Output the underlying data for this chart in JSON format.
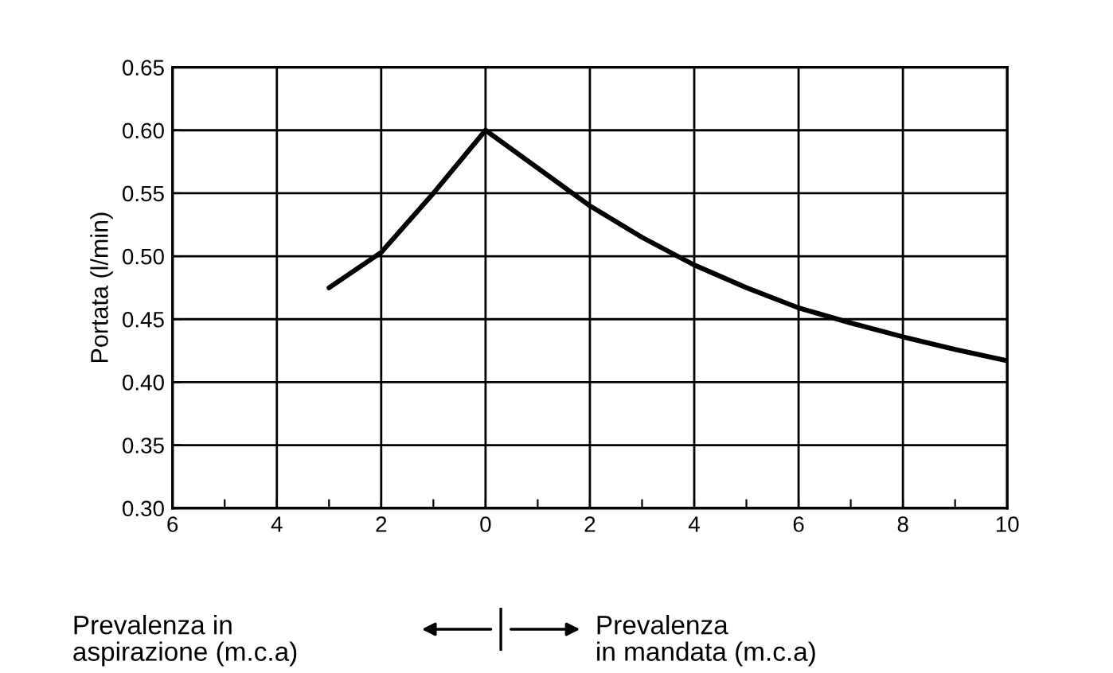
{
  "chart_data": {
    "type": "line",
    "ylabel": "Portata (l/min)",
    "annotations": [
      "Prevalenza in\naspirazione (m.c.a)",
      "Prevalenza\nin mandata (m.c.a)"
    ],
    "x": [
      -3,
      -2,
      -1,
      0,
      1,
      2,
      3,
      4,
      5,
      6,
      7,
      8,
      9,
      10
    ],
    "series": [
      {
        "color": "#000000",
        "values": [
          0.475,
          0.503,
          0.55,
          0.6,
          0.57,
          0.54,
          0.515,
          0.493,
          0.475,
          0.459,
          0.447,
          0.436,
          0.426,
          0.417
        ]
      }
    ],
    "xlim": [
      -6,
      10
    ],
    "xticks": [
      {
        "value": -6,
        "label": "6"
      },
      {
        "value": -5,
        "label": null
      },
      {
        "value": -4,
        "label": "4"
      },
      {
        "value": -3,
        "label": null
      },
      {
        "value": -2,
        "label": "2"
      },
      {
        "value": -1,
        "label": null
      },
      0,
      {
        "value": 1,
        "label": null
      },
      2,
      {
        "value": 3,
        "label": null
      },
      4,
      {
        "value": 5,
        "label": null
      },
      6,
      {
        "value": 7,
        "label": null
      },
      8,
      {
        "value": 9,
        "label": null
      },
      10
    ],
    "ylim": [
      0.3,
      0.65
    ],
    "yticks": [
      {
        "value": 0.3,
        "label": "0.30"
      },
      {
        "value": 0.35,
        "label": "0.35"
      },
      {
        "value": 0.4,
        "label": "0.40"
      },
      {
        "value": 0.45,
        "label": "0.45"
      },
      {
        "value": 0.5,
        "label": "0.50"
      },
      {
        "value": 0.55,
        "label": "0.55"
      },
      {
        "value": 0.6,
        "label": "0.60"
      },
      {
        "value": 0.65,
        "label": "0.65"
      }
    ],
    "grid": true,
    "line_style": "solid",
    "marker": "none"
  }
}
